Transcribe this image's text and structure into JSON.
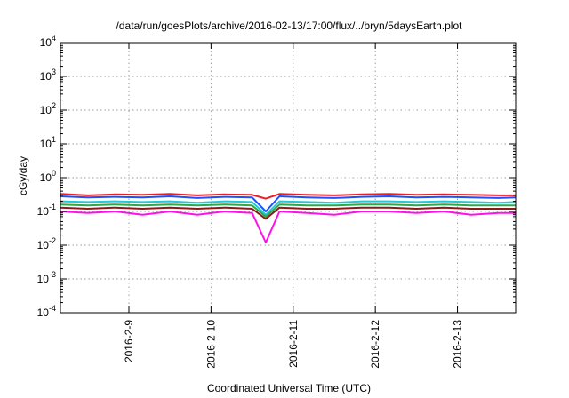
{
  "chart_data": {
    "type": "line",
    "title": "/data/run/goesPlots/archive/2016-02-13/17:00/flux/../bryn/5daysEarth.plot",
    "xlabel": "Coordinated Universal Time (UTC)",
    "ylabel": "cGy/day",
    "yscale": "log",
    "ylim": [
      0.0001,
      10000
    ],
    "xlim": [
      "2016-02-08T04:00",
      "2016-02-13T17:00"
    ],
    "y_ticks": [
      {
        "value": 0.0001,
        "base": "10",
        "exp": "-4"
      },
      {
        "value": 0.001,
        "base": "10",
        "exp": "-3"
      },
      {
        "value": 0.01,
        "base": "10",
        "exp": "-2"
      },
      {
        "value": 0.1,
        "base": "10",
        "exp": "-1"
      },
      {
        "value": 1,
        "base": "10",
        "exp": "0"
      },
      {
        "value": 10,
        "base": "10",
        "exp": "1"
      },
      {
        "value": 100,
        "base": "10",
        "exp": "2"
      },
      {
        "value": 1000,
        "base": "10",
        "exp": "3"
      },
      {
        "value": 10000,
        "base": "10",
        "exp": "4"
      }
    ],
    "x_ticks": [
      {
        "value": "2016-02-09T00:00",
        "label": "2016-2-9"
      },
      {
        "value": "2016-02-10T00:00",
        "label": "2016-2-10"
      },
      {
        "value": "2016-02-11T00:00",
        "label": "2016-2-11"
      },
      {
        "value": "2016-02-12T00:00",
        "label": "2016-2-12"
      },
      {
        "value": "2016-02-13T00:00",
        "label": "2016-2-13"
      }
    ],
    "grid": true,
    "series": [
      {
        "color": "#e8202a",
        "x": [
          "2016-02-08T04:00",
          "2016-02-08T12:00",
          "2016-02-08T20:00",
          "2016-02-09T04:00",
          "2016-02-09T12:00",
          "2016-02-09T20:00",
          "2016-02-10T04:00",
          "2016-02-10T12:00",
          "2016-02-10T16:00",
          "2016-02-10T20:00",
          "2016-02-11T04:00",
          "2016-02-11T12:00",
          "2016-02-11T20:00",
          "2016-02-12T04:00",
          "2016-02-12T12:00",
          "2016-02-12T20:00",
          "2016-02-13T04:00",
          "2016-02-13T12:00",
          "2016-02-13T17:00"
        ],
        "y": [
          0.33,
          0.3,
          0.32,
          0.31,
          0.33,
          0.3,
          0.32,
          0.31,
          0.24,
          0.33,
          0.31,
          0.3,
          0.32,
          0.33,
          0.31,
          0.32,
          0.31,
          0.3,
          0.3
        ]
      },
      {
        "color": "#1f4fff",
        "x": [
          "2016-02-08T04:00",
          "2016-02-08T12:00",
          "2016-02-08T20:00",
          "2016-02-09T04:00",
          "2016-02-09T12:00",
          "2016-02-09T20:00",
          "2016-02-10T04:00",
          "2016-02-10T12:00",
          "2016-02-10T16:00",
          "2016-02-10T20:00",
          "2016-02-11T04:00",
          "2016-02-11T12:00",
          "2016-02-11T20:00",
          "2016-02-12T04:00",
          "2016-02-12T12:00",
          "2016-02-12T20:00",
          "2016-02-13T04:00",
          "2016-02-13T12:00",
          "2016-02-13T17:00"
        ],
        "y": [
          0.28,
          0.26,
          0.27,
          0.26,
          0.28,
          0.25,
          0.27,
          0.26,
          0.1,
          0.28,
          0.26,
          0.25,
          0.27,
          0.28,
          0.26,
          0.27,
          0.26,
          0.25,
          0.26
        ]
      },
      {
        "color": "#22c8d8",
        "x": [
          "2016-02-08T04:00",
          "2016-02-08T12:00",
          "2016-02-08T20:00",
          "2016-02-09T04:00",
          "2016-02-09T12:00",
          "2016-02-09T20:00",
          "2016-02-10T04:00",
          "2016-02-10T12:00",
          "2016-02-10T16:00",
          "2016-02-10T20:00",
          "2016-02-11T04:00",
          "2016-02-11T12:00",
          "2016-02-11T20:00",
          "2016-02-12T04:00",
          "2016-02-12T12:00",
          "2016-02-12T20:00",
          "2016-02-13T04:00",
          "2016-02-13T12:00",
          "2016-02-13T17:00"
        ],
        "y": [
          0.2,
          0.19,
          0.2,
          0.19,
          0.2,
          0.18,
          0.2,
          0.19,
          0.08,
          0.2,
          0.19,
          0.18,
          0.2,
          0.2,
          0.19,
          0.2,
          0.19,
          0.18,
          0.19
        ]
      },
      {
        "color": "#2aa84a",
        "x": [
          "2016-02-08T04:00",
          "2016-02-08T12:00",
          "2016-02-08T20:00",
          "2016-02-09T04:00",
          "2016-02-09T12:00",
          "2016-02-09T20:00",
          "2016-02-10T04:00",
          "2016-02-10T12:00",
          "2016-02-10T16:00",
          "2016-02-10T20:00",
          "2016-02-11T04:00",
          "2016-02-11T12:00",
          "2016-02-11T20:00",
          "2016-02-12T04:00",
          "2016-02-12T12:00",
          "2016-02-12T20:00",
          "2016-02-13T04:00",
          "2016-02-13T12:00",
          "2016-02-13T17:00"
        ],
        "y": [
          0.16,
          0.15,
          0.16,
          0.15,
          0.16,
          0.15,
          0.16,
          0.15,
          0.07,
          0.16,
          0.15,
          0.15,
          0.16,
          0.16,
          0.15,
          0.16,
          0.15,
          0.15,
          0.15
        ]
      },
      {
        "color": "#8a1a1a",
        "x": [
          "2016-02-08T04:00",
          "2016-02-08T12:00",
          "2016-02-08T20:00",
          "2016-02-09T04:00",
          "2016-02-09T12:00",
          "2016-02-09T20:00",
          "2016-02-10T04:00",
          "2016-02-10T12:00",
          "2016-02-10T16:00",
          "2016-02-10T20:00",
          "2016-02-11T04:00",
          "2016-02-11T12:00",
          "2016-02-11T20:00",
          "2016-02-12T04:00",
          "2016-02-12T12:00",
          "2016-02-12T20:00",
          "2016-02-13T04:00",
          "2016-02-13T12:00",
          "2016-02-13T17:00"
        ],
        "y": [
          0.13,
          0.12,
          0.13,
          0.12,
          0.13,
          0.12,
          0.13,
          0.12,
          0.06,
          0.13,
          0.12,
          0.12,
          0.13,
          0.13,
          0.12,
          0.13,
          0.12,
          0.12,
          0.12
        ]
      },
      {
        "color": "#ff10e8",
        "x": [
          "2016-02-08T04:00",
          "2016-02-08T12:00",
          "2016-02-08T20:00",
          "2016-02-09T04:00",
          "2016-02-09T12:00",
          "2016-02-09T20:00",
          "2016-02-10T04:00",
          "2016-02-10T12:00",
          "2016-02-10T16:00",
          "2016-02-10T20:00",
          "2016-02-11T04:00",
          "2016-02-11T12:00",
          "2016-02-11T20:00",
          "2016-02-12T04:00",
          "2016-02-12T12:00",
          "2016-02-12T20:00",
          "2016-02-13T04:00",
          "2016-02-13T12:00",
          "2016-02-13T17:00"
        ],
        "y": [
          0.1,
          0.09,
          0.1,
          0.08,
          0.1,
          0.08,
          0.1,
          0.09,
          0.012,
          0.1,
          0.09,
          0.08,
          0.1,
          0.1,
          0.09,
          0.1,
          0.08,
          0.09,
          0.09
        ]
      }
    ]
  }
}
